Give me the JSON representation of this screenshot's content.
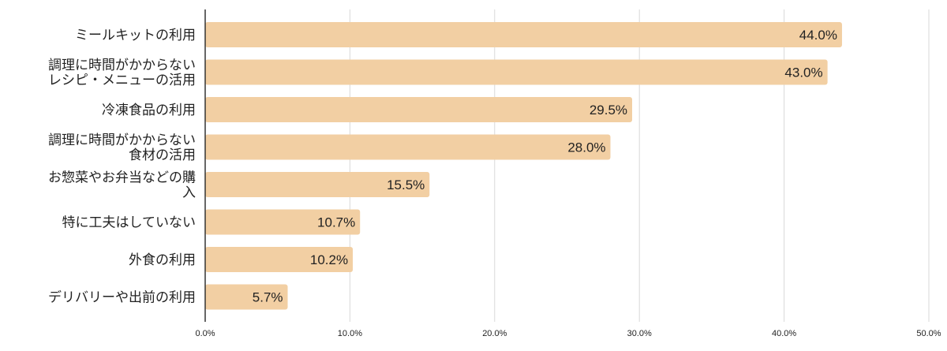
{
  "colors": {
    "bar": "#f2cfa3",
    "grid": "#d9d9d9",
    "axis": "#333333",
    "text": "#222222"
  },
  "chart_data": {
    "type": "bar",
    "orientation": "horizontal",
    "categories": [
      [
        "ミールキットの利用"
      ],
      [
        "調理に時間がかからない",
        "レシピ・メニューの活用"
      ],
      [
        "冷凍食品の利用"
      ],
      [
        "調理に時間がかからない",
        "食材の活用"
      ],
      [
        "お惣菜やお弁当などの購",
        "入"
      ],
      [
        "特に工夫はしていない"
      ],
      [
        "外食の利用"
      ],
      [
        "デリバリーや出前の利用"
      ]
    ],
    "values": [
      44.0,
      43.0,
      29.5,
      28.0,
      15.5,
      10.7,
      10.2,
      5.7
    ],
    "value_labels": [
      "44.0%",
      "43.0%",
      "29.5%",
      "28.0%",
      "15.5%",
      "10.7%",
      "10.2%",
      "5.7%"
    ],
    "xlim": [
      0,
      50
    ],
    "x_ticks": [
      0,
      10,
      20,
      30,
      40,
      50
    ],
    "x_tick_labels": [
      "0.0%",
      "10.0%",
      "20.0%",
      "30.0%",
      "40.0%",
      "50.0%"
    ],
    "grid": true,
    "legend": false
  }
}
